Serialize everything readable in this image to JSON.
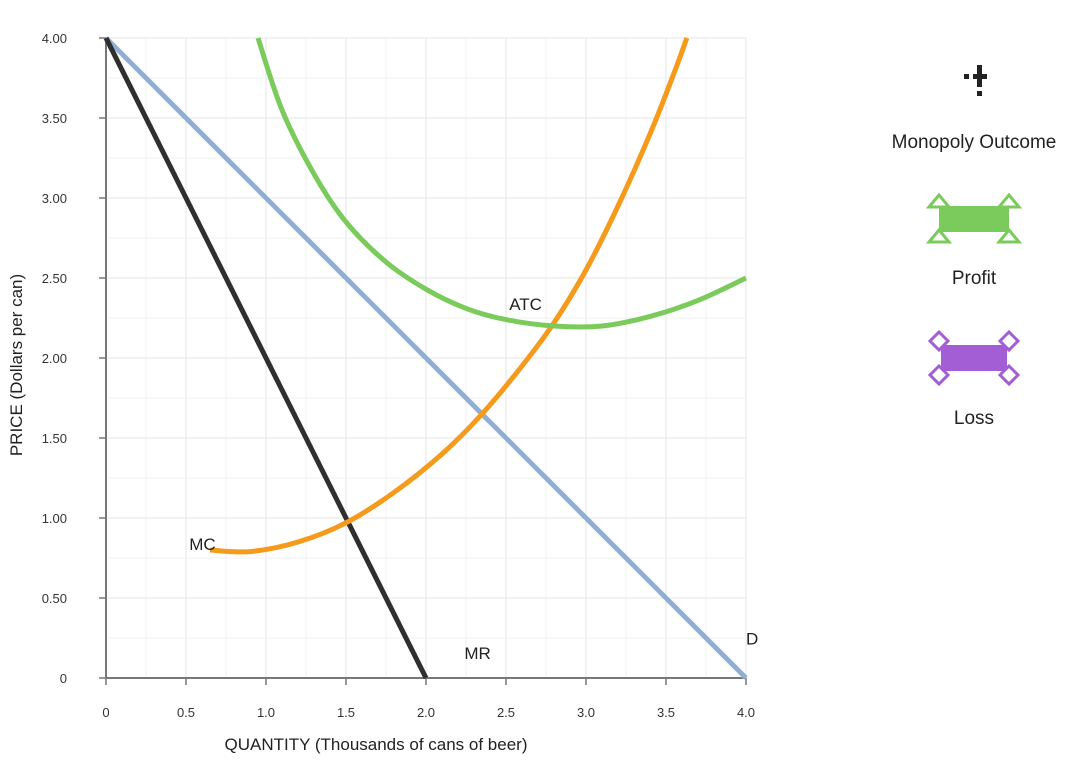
{
  "chart_data": {
    "type": "line",
    "title": "",
    "xlabel": "QUANTITY (Thousands of cans of beer)",
    "ylabel": "PRICE (Dollars per can)",
    "xlim": [
      0,
      4.0
    ],
    "ylim": [
      0,
      4.0
    ],
    "x_ticks": [
      0,
      0.5,
      1.0,
      1.5,
      2.0,
      2.5,
      3.0,
      3.5,
      4.0
    ],
    "x_tick_labels": [
      "0",
      "0.5",
      "1.0",
      "1.5",
      "2.0",
      "2.5",
      "3.0",
      "3.5",
      "4.0"
    ],
    "y_ticks": [
      0,
      0.5,
      1.0,
      1.5,
      2.0,
      2.5,
      3.0,
      3.5,
      4.0
    ],
    "y_tick_labels": [
      "0",
      "0.50",
      "1.00",
      "1.50",
      "2.00",
      "2.50",
      "3.00",
      "3.50",
      "4.00"
    ],
    "grid": true,
    "series": [
      {
        "name": "D",
        "color": "#8fb0d4",
        "points": [
          [
            0,
            4.0
          ],
          [
            4.0,
            0
          ]
        ]
      },
      {
        "name": "MR",
        "color": "#2f2f2f",
        "points": [
          [
            0,
            4.0
          ],
          [
            2.0,
            0
          ]
        ]
      },
      {
        "name": "MC",
        "color": "#f59a1a",
        "points": [
          [
            0.65,
            0.8
          ],
          [
            0.9,
            0.79
          ],
          [
            1.2,
            0.85
          ],
          [
            1.5,
            0.97
          ],
          [
            1.8,
            1.16
          ],
          [
            2.1,
            1.4
          ],
          [
            2.35,
            1.65
          ],
          [
            2.6,
            1.95
          ],
          [
            2.8,
            2.22
          ],
          [
            3.0,
            2.55
          ],
          [
            3.2,
            2.95
          ],
          [
            3.4,
            3.4
          ],
          [
            3.55,
            3.78
          ],
          [
            3.63,
            4.0
          ]
        ]
      },
      {
        "name": "ATC",
        "color": "#7acb5c",
        "points": [
          [
            0.95,
            4.0
          ],
          [
            1.1,
            3.55
          ],
          [
            1.3,
            3.15
          ],
          [
            1.5,
            2.85
          ],
          [
            1.75,
            2.6
          ],
          [
            2.0,
            2.43
          ],
          [
            2.25,
            2.31
          ],
          [
            2.5,
            2.24
          ],
          [
            2.8,
            2.2
          ],
          [
            3.1,
            2.2
          ],
          [
            3.4,
            2.26
          ],
          [
            3.7,
            2.36
          ],
          [
            4.0,
            2.5
          ]
        ]
      }
    ],
    "curve_labels": [
      {
        "text": "ATC",
        "x": 2.52,
        "y": 2.3
      },
      {
        "text": "MC",
        "x": 0.52,
        "y": 0.8
      },
      {
        "text": "MR",
        "x": 2.24,
        "y": 0.12
      },
      {
        "text": "D",
        "x": 4.0,
        "y": 0.21
      }
    ]
  },
  "legend": {
    "items": [
      {
        "label": "Monopoly Outcome",
        "icon": "monopoly-outcome-icon",
        "color": "#222222"
      },
      {
        "label": "Profit",
        "icon": "profit-area-icon",
        "color": "#7acb5c"
      },
      {
        "label": "Loss",
        "icon": "loss-area-icon",
        "color": "#a35ed6"
      }
    ]
  }
}
